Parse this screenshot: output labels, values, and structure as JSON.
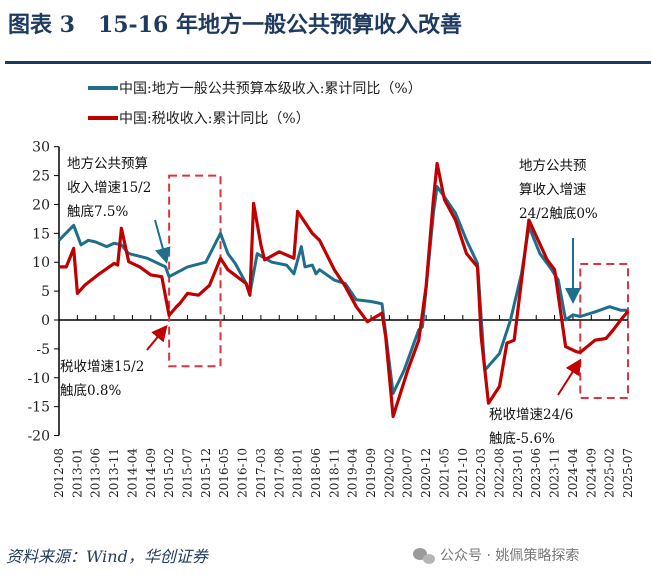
{
  "title": "图表 3   15-16 年地方一般公共预算收入改善",
  "colors": {
    "title": "#1f3a5f",
    "blue": "#1f6e8c",
    "red": "#c00000",
    "box": "#d9363e"
  },
  "source": "资料来源：Wind，华创证券",
  "watermark": {
    "icon": "wechat-icon",
    "text": "公众号 · 姚佩策略探索"
  },
  "chart_data": {
    "type": "line",
    "title": "",
    "xlabel": "",
    "ylabel": "",
    "ylim": [
      -20,
      30
    ],
    "yticks": [
      30,
      25,
      20,
      15,
      10,
      5,
      0,
      -5,
      -10,
      -15,
      -20
    ],
    "xlim": [
      "2012-08",
      "2025-07"
    ],
    "xticks": [
      "2012-08",
      "2013-01",
      "2013-06",
      "2013-11",
      "2014-04",
      "2014-09",
      "2015-02",
      "2015-07",
      "2015-12",
      "2016-05",
      "2016-10",
      "2017-03",
      "2017-08",
      "2018-01",
      "2018-06",
      "2018-11",
      "2019-04",
      "2019-09",
      "2020-02",
      "2020-07",
      "2020-12",
      "2021-05",
      "2021-10",
      "2022-03",
      "2022-08",
      "2023-01",
      "2023-06",
      "2023-11",
      "2024-04",
      "2024-09",
      "2025-02",
      "2025-07"
    ],
    "grid": false,
    "legend_position": "top",
    "series": [
      {
        "name": "中国:地方一般公共预算本级收入:累计同比（%）",
        "color": "#1f6e8c",
        "points": [
          [
            "2012-08",
            13.8
          ],
          [
            "2012-12",
            16.4
          ],
          [
            "2013-02",
            13
          ],
          [
            "2013-04",
            13.8
          ],
          [
            "2013-06",
            13.5
          ],
          [
            "2013-09",
            12.7
          ],
          [
            "2013-11",
            13.3
          ],
          [
            "2014-01",
            13
          ],
          [
            "2014-03",
            11.5
          ],
          [
            "2014-08",
            10.7
          ],
          [
            "2014-11",
            9.8
          ],
          [
            "2015-01",
            9.2
          ],
          [
            "2015-02",
            7.5
          ],
          [
            "2015-07",
            9.2
          ],
          [
            "2015-12",
            10
          ],
          [
            "2016-04",
            15
          ],
          [
            "2016-06",
            11.5
          ],
          [
            "2016-08",
            9.8
          ],
          [
            "2016-11",
            6.3
          ],
          [
            "2016-12",
            4.6
          ],
          [
            "2017-02",
            11.5
          ],
          [
            "2017-04",
            10.7
          ],
          [
            "2017-06",
            10
          ],
          [
            "2017-10",
            9.5
          ],
          [
            "2017-12",
            8
          ],
          [
            "2018-02",
            12.7
          ],
          [
            "2018-03",
            9.2
          ],
          [
            "2018-05",
            9.5
          ],
          [
            "2018-06",
            8
          ],
          [
            "2018-07",
            8.7
          ],
          [
            "2018-11",
            6.9
          ],
          [
            "2019-02",
            6.3
          ],
          [
            "2019-05",
            3.5
          ],
          [
            "2019-09",
            3.2
          ],
          [
            "2019-12",
            2.8
          ],
          [
            "2020-03",
            -12.7
          ],
          [
            "2020-06",
            -8.7
          ],
          [
            "2020-10",
            -1.7
          ],
          [
            "2020-11",
            -1.2
          ],
          [
            "2021-02",
            18.5
          ],
          [
            "2021-03",
            23.1
          ],
          [
            "2021-05",
            21.3
          ],
          [
            "2021-08",
            18.5
          ],
          [
            "2021-11",
            13.8
          ],
          [
            "2022-02",
            9.8
          ],
          [
            "2022-04",
            -8.7
          ],
          [
            "2022-08",
            -5.8
          ],
          [
            "2022-11",
            0
          ],
          [
            "2023-02",
            8
          ],
          [
            "2023-04",
            16.2
          ],
          [
            "2023-07",
            11.5
          ],
          [
            "2023-10",
            8.9
          ],
          [
            "2023-12",
            6.9
          ],
          [
            "2024-02",
            0
          ],
          [
            "2024-04",
            0.9
          ],
          [
            "2024-06",
            0.6
          ],
          [
            "2024-10",
            1.4
          ],
          [
            "2025-02",
            2.3
          ],
          [
            "2025-05",
            1.7
          ],
          [
            "2025-07",
            1.7
          ]
        ]
      },
      {
        "name": "中国:税收收入:累计同比（%）",
        "color": "#c00000",
        "points": [
          [
            "2012-08",
            9.2
          ],
          [
            "2012-10",
            9.2
          ],
          [
            "2012-12",
            12.4
          ],
          [
            "2013-01",
            4.6
          ],
          [
            "2013-03",
            6
          ],
          [
            "2013-07",
            8
          ],
          [
            "2013-11",
            9.8
          ],
          [
            "2013-12",
            9.5
          ],
          [
            "2014-01",
            15.9
          ],
          [
            "2014-03",
            10.1
          ],
          [
            "2014-06",
            9.2
          ],
          [
            "2014-09",
            7.8
          ],
          [
            "2014-12",
            7.5
          ],
          [
            "2015-02",
            0.8
          ],
          [
            "2015-04",
            2.3
          ],
          [
            "2015-05",
            2.9
          ],
          [
            "2015-07",
            4.6
          ],
          [
            "2015-10",
            4.3
          ],
          [
            "2016-01",
            6
          ],
          [
            "2016-04",
            10.7
          ],
          [
            "2016-06",
            8.7
          ],
          [
            "2016-11",
            6.3
          ],
          [
            "2016-12",
            4.3
          ],
          [
            "2017-01",
            20.2
          ],
          [
            "2017-03",
            13
          ],
          [
            "2017-04",
            10.4
          ],
          [
            "2017-08",
            11.8
          ],
          [
            "2017-12",
            10.7
          ],
          [
            "2018-01",
            18.8
          ],
          [
            "2018-05",
            15
          ],
          [
            "2018-07",
            13.8
          ],
          [
            "2018-11",
            8.7
          ],
          [
            "2019-02",
            5.8
          ],
          [
            "2019-05",
            2.3
          ],
          [
            "2019-08",
            -0.3
          ],
          [
            "2019-12",
            1.2
          ],
          [
            "2020-01",
            -2.9
          ],
          [
            "2020-03",
            -16.7
          ],
          [
            "2020-07",
            -8.7
          ],
          [
            "2020-10",
            -3.5
          ],
          [
            "2020-12",
            5.8
          ],
          [
            "2021-02",
            20.8
          ],
          [
            "2021-03",
            27.1
          ],
          [
            "2021-05",
            20.8
          ],
          [
            "2021-08",
            17.3
          ],
          [
            "2021-11",
            11.5
          ],
          [
            "2022-02",
            9.2
          ],
          [
            "2022-03",
            -2.9
          ],
          [
            "2022-05",
            -14.4
          ],
          [
            "2022-08",
            -11.5
          ],
          [
            "2022-10",
            -4
          ],
          [
            "2022-12",
            -3.5
          ],
          [
            "2023-04",
            17.3
          ],
          [
            "2023-09",
            10.4
          ],
          [
            "2023-11",
            8.7
          ],
          [
            "2024-02",
            -4.6
          ],
          [
            "2024-05",
            -5.5
          ],
          [
            "2024-06",
            -5.6
          ],
          [
            "2024-10",
            -3.5
          ],
          [
            "2025-01",
            -3.2
          ],
          [
            "2025-03",
            -1.7
          ],
          [
            "2025-05",
            0
          ],
          [
            "2025-07",
            1.5
          ]
        ]
      }
    ],
    "highlight_boxes": [
      {
        "x": [
          "2015-02",
          "2016-04"
        ],
        "y": [
          -8,
          25
        ]
      },
      {
        "x": [
          "2024-06",
          "2025-07"
        ],
        "y": [
          -13.5,
          9.7
        ]
      }
    ],
    "annotations": [
      {
        "lines": [
          "地方公共预算",
          "收入增速15/2",
          "触底7.5%"
        ],
        "target": [
          "2015-02",
          7.5
        ],
        "series": "blue"
      },
      {
        "lines": [
          "税收增速15/2",
          "触底0.8%"
        ],
        "target": [
          "2015-02",
          0.8
        ],
        "series": "red"
      },
      {
        "lines": [
          "地方公共预",
          "算收入增速",
          "24/2触底0%"
        ],
        "target": [
          "2024-02",
          0
        ],
        "series": "blue"
      },
      {
        "lines": [
          "税收增速24/6",
          "触底-5.6%"
        ],
        "target": [
          "2024-06",
          -5.6
        ],
        "series": "red"
      }
    ]
  }
}
